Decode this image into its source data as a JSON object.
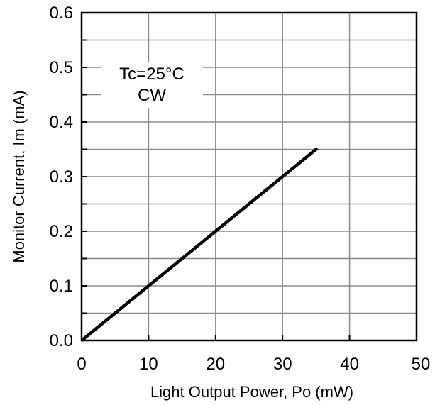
{
  "chart_data": {
    "type": "line",
    "title": "",
    "xlabel": "Light Output Power, Po (mW)",
    "ylabel": "Monitor Current, Im (mA)",
    "xlim": [
      0,
      50
    ],
    "ylim": [
      0,
      0.6
    ],
    "x_ticks": [
      "0",
      "10",
      "20",
      "30",
      "40",
      "50"
    ],
    "y_ticks": [
      "0.0",
      "0.1",
      "0.2",
      "0.3",
      "0.4",
      "0.5",
      "0.6"
    ],
    "grid": true,
    "annotation": [
      "Tc=25°C",
      "CW"
    ],
    "series": [
      {
        "x": [
          0,
          35.2
        ],
        "y": [
          0,
          0.352
        ],
        "color": "#000000"
      }
    ]
  }
}
